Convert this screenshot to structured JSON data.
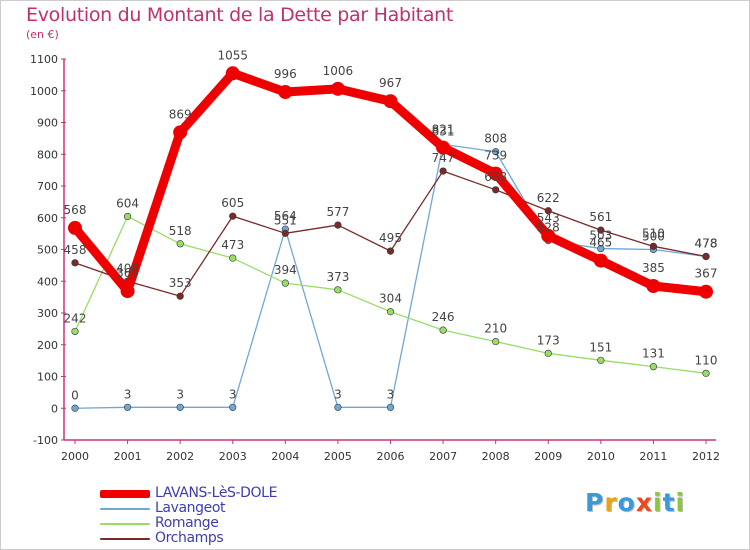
{
  "title": "Evolution du Montant de la Dette par Habitant",
  "subtitle": "(en €)",
  "logo": {
    "text": "Proxiti",
    "letters": [
      {
        "ch": "P",
        "color": "#3a9ad9"
      },
      {
        "ch": "r",
        "color": "#e8a21c"
      },
      {
        "ch": "o",
        "color": "#3a9ad9"
      },
      {
        "ch": "x",
        "color": "#e84c1c"
      },
      {
        "ch": "i",
        "color": "#8cc63f"
      },
      {
        "ch": "t",
        "color": "#3a9ad9"
      },
      {
        "ch": "i",
        "color": "#8cc63f"
      }
    ]
  },
  "chart_data": {
    "type": "line",
    "x": [
      "2000",
      "2001",
      "2002",
      "2003",
      "2004",
      "2005",
      "2006",
      "2007",
      "2008",
      "2009",
      "2010",
      "2011",
      "2012"
    ],
    "ylim": [
      -100,
      1100
    ],
    "yticks": [
      -100,
      0,
      100,
      200,
      300,
      400,
      500,
      600,
      700,
      800,
      900,
      1000,
      1100
    ],
    "grid": false,
    "legend_position": "bottom-left",
    "series": [
      {
        "name": "LAVANS-LèS-DOLE",
        "color": "#ee0000",
        "highlight": true,
        "values": [
          568,
          369,
          869,
          1055,
          996,
          1006,
          967,
          821,
          739,
          543,
          465,
          385,
          367
        ],
        "labels": [
          "568",
          "369",
          "869",
          "1055",
          "996",
          "1006",
          "967",
          "821",
          "739",
          "543",
          "465",
          "385",
          "367"
        ]
      },
      {
        "name": "Lavangeot",
        "color": "#6fa8d6",
        "highlight": false,
        "values": [
          0,
          3,
          3,
          3,
          564,
          3,
          3,
          831,
          808,
          528,
          503,
          500,
          478
        ],
        "labels": [
          "0",
          "3",
          "3",
          "3",
          "564",
          "3",
          "3",
          "831",
          "808",
          "528",
          "503",
          "500",
          "478"
        ]
      },
      {
        "name": "Romange",
        "color": "#99dd66",
        "highlight": false,
        "values": [
          242,
          604,
          518,
          473,
          394,
          373,
          304,
          246,
          210,
          173,
          151,
          131,
          110
        ],
        "labels": [
          "242",
          "604",
          "518",
          "473",
          "394",
          "373",
          "304",
          "246",
          "210",
          "173",
          "151",
          "131",
          "110"
        ]
      },
      {
        "name": "Orchamps",
        "color": "#7a2a2a",
        "highlight": false,
        "values": [
          458,
          400,
          353,
          605,
          551,
          577,
          495,
          747,
          688,
          622,
          561,
          510,
          478
        ],
        "labels": [
          "458",
          "400",
          "353",
          "605",
          "551",
          "577",
          "495",
          "747",
          "688",
          "622",
          "561",
          "510",
          "478"
        ]
      }
    ]
  }
}
